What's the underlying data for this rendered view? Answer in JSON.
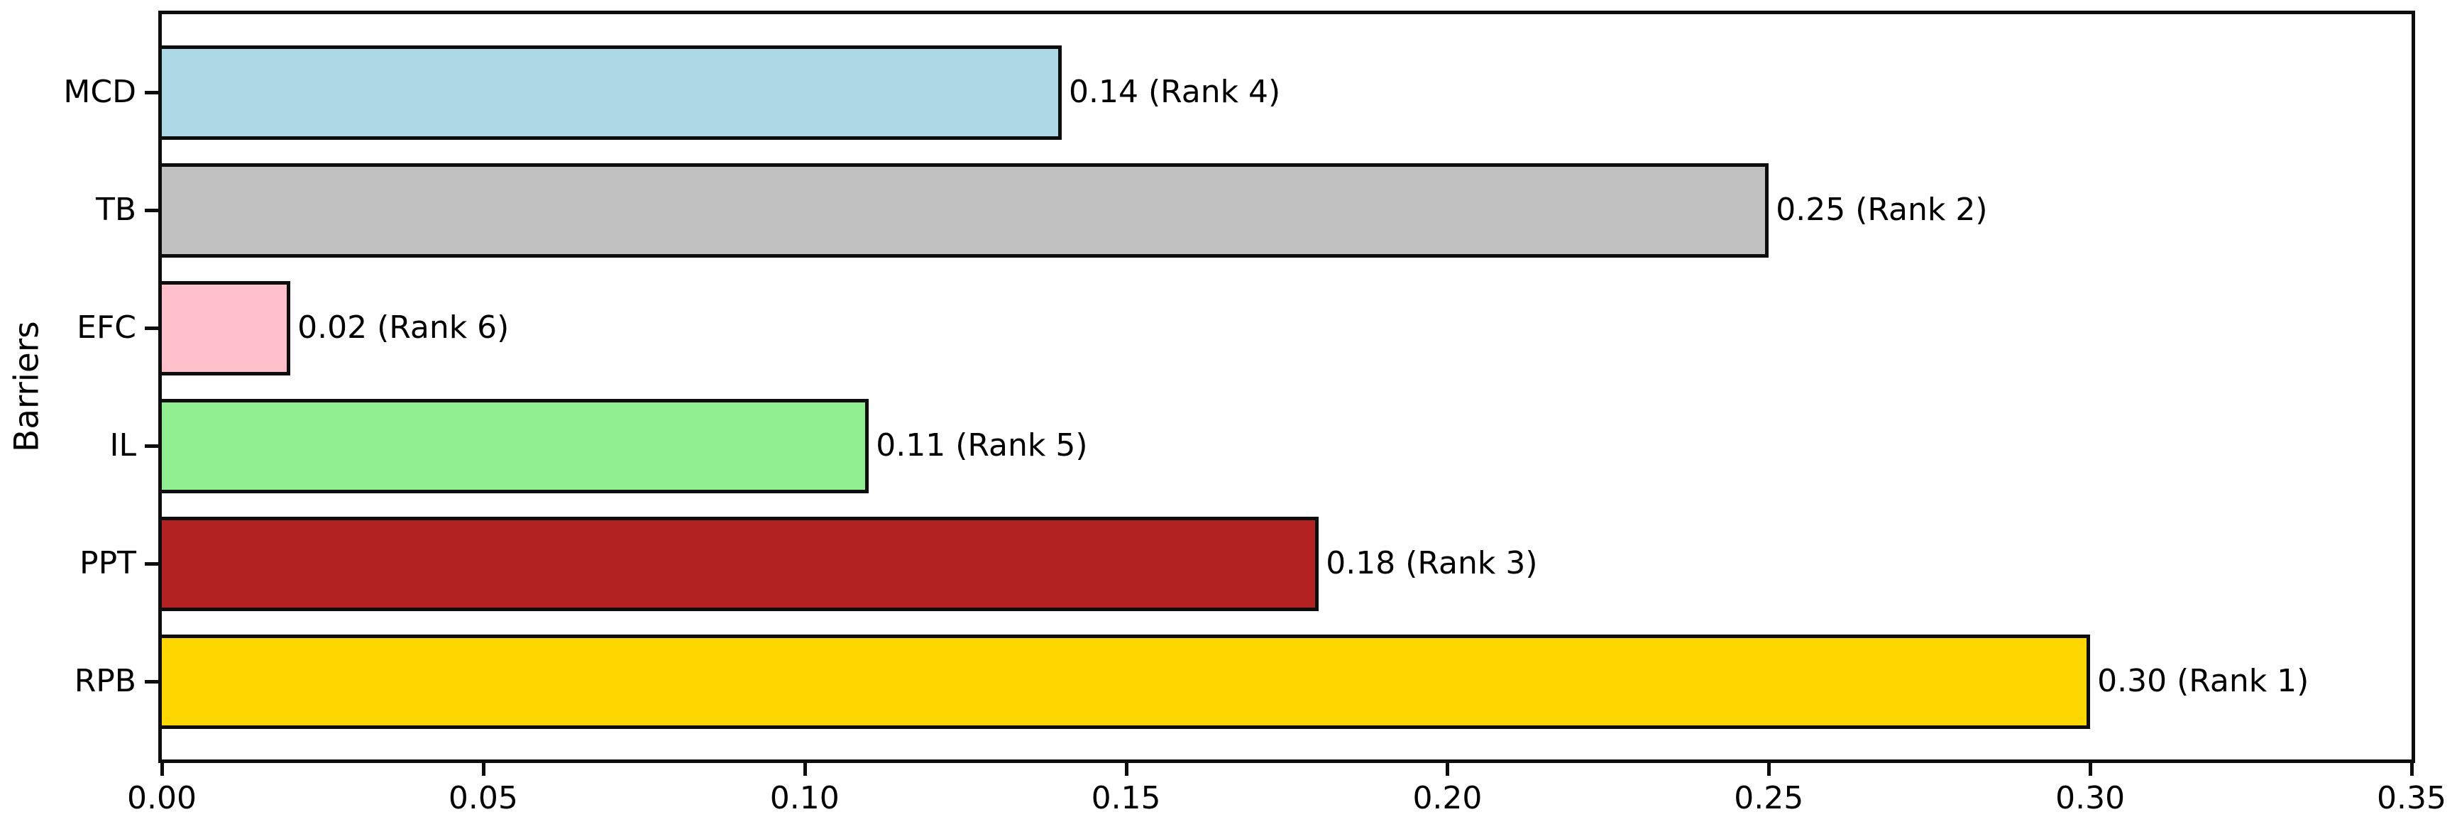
{
  "figure": {
    "background_color": "#ffffff",
    "frame_color": "#0d0d0d"
  },
  "chart_data": {
    "type": "bar",
    "orientation": "horizontal",
    "title": "",
    "xlabel": "",
    "ylabel": "Barriers",
    "grid": false,
    "legend": false,
    "frame": true,
    "xlim": [
      0,
      0.35
    ],
    "xtick_values": [
      0.0,
      0.05,
      0.1,
      0.15,
      0.2,
      0.25,
      0.3,
      0.35
    ],
    "xtick_labels": [
      "0.00",
      "0.05",
      "0.10",
      "0.15",
      "0.20",
      "0.25",
      "0.30",
      "0.35"
    ],
    "categories": [
      "MCD",
      "TB",
      "EFC",
      "IL",
      "PPT",
      "RPB"
    ],
    "values": [
      0.14,
      0.25,
      0.02,
      0.11,
      0.18,
      0.3
    ],
    "ranks": [
      4,
      2,
      6,
      5,
      3,
      1
    ],
    "bar_labels": [
      "0.14 (Rank 4)",
      "0.25 (Rank 2)",
      "0.02 (Rank 6)",
      "0.11 (Rank 5)",
      "0.18 (Rank 3)",
      "0.30 (Rank 1)"
    ],
    "bar_colors": [
      "#ADD8E6",
      "#C0C0C0",
      "#FFC0CB",
      "#90EE90",
      "#B22222",
      "#FFD700"
    ],
    "bar_edge_color": "#0d0d0d"
  }
}
